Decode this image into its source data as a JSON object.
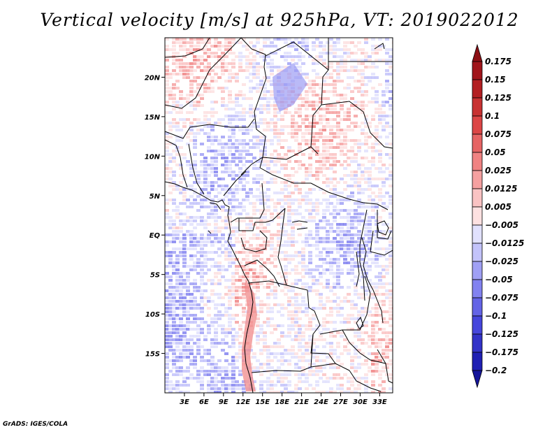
{
  "title": "Vertical velocity [m/s] at 925hPa, VT: 2019022012",
  "footer": "GrADS: IGES/COLA",
  "map": {
    "lon_range": [
      0,
      35
    ],
    "lat_range": [
      -20,
      25
    ],
    "lon_ticks": [
      {
        "value": 3,
        "label": "3E"
      },
      {
        "value": 6,
        "label": "6E"
      },
      {
        "value": 9,
        "label": "9E"
      },
      {
        "value": 12,
        "label": "12E"
      },
      {
        "value": 15,
        "label": "15E"
      },
      {
        "value": 18,
        "label": "18E"
      },
      {
        "value": 21,
        "label": "21E"
      },
      {
        "value": 24,
        "label": "24E"
      },
      {
        "value": 27,
        "label": "27E"
      },
      {
        "value": 30,
        "label": "30E"
      },
      {
        "value": 33,
        "label": "33E"
      }
    ],
    "lat_ticks": [
      {
        "value": 20,
        "label": "20N"
      },
      {
        "value": 15,
        "label": "15N"
      },
      {
        "value": 10,
        "label": "10N"
      },
      {
        "value": 5,
        "label": "5N"
      },
      {
        "value": 0,
        "label": "EQ"
      },
      {
        "value": -5,
        "label": "5S"
      },
      {
        "value": -10,
        "label": "10S"
      },
      {
        "value": -15,
        "label": "15S"
      }
    ]
  },
  "colorbar": {
    "levels": [
      {
        "label": "0.175",
        "color": "#a1151b"
      },
      {
        "label": "0.15",
        "color": "#b31f22"
      },
      {
        "label": "0.125",
        "color": "#c83232"
      },
      {
        "label": "0.1",
        "color": "#dc4646"
      },
      {
        "label": "0.075",
        "color": "#e66464"
      },
      {
        "label": "0.05",
        "color": "#f08282"
      },
      {
        "label": "0.025",
        "color": "#f5a0a0"
      },
      {
        "label": "0.0125",
        "color": "#fac3c3"
      },
      {
        "label": "0.005",
        "color": "#fde1e1"
      },
      {
        "label": "-0.005",
        "color": "#ffffff"
      },
      {
        "label": "-0.0125",
        "color": "#e1e1fd"
      },
      {
        "label": "-0.025",
        "color": "#c3c3fa"
      },
      {
        "label": "-0.05",
        "color": "#a0a0f5"
      },
      {
        "label": "-0.075",
        "color": "#8282f0"
      },
      {
        "label": "-0.1",
        "color": "#6464e6"
      },
      {
        "label": "-0.125",
        "color": "#4646dc"
      },
      {
        "label": "-0.175",
        "color": "#3232c8"
      },
      {
        "label": "-0.2",
        "color": "#1f1fb3"
      }
    ],
    "top_color": "#a1151b",
    "bottom_color": "#15159a",
    "extra_band_colors": [
      "#8c0f14",
      "#2626b0"
    ]
  }
}
